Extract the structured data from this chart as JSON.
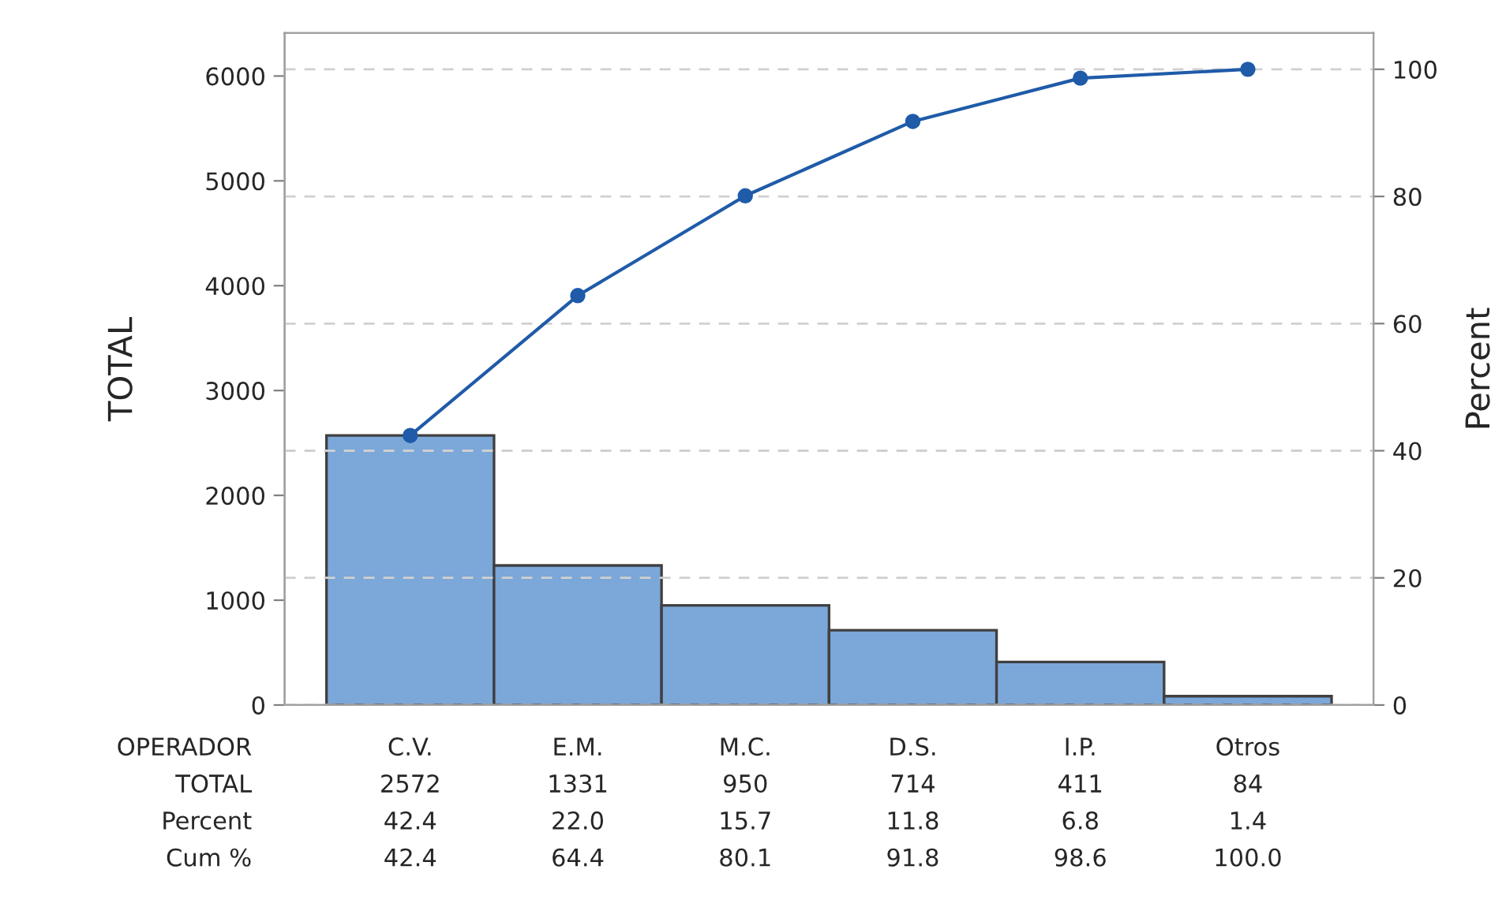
{
  "chart_data": {
    "type": "bar",
    "xlabel": "OPERADOR",
    "ylabel": "TOTAL",
    "y2label": "Percent",
    "categories": [
      "C.V.",
      "E.M.",
      "M.C.",
      "D.S.",
      "I.P.",
      "Otros"
    ],
    "series": [
      {
        "color": "#7ba7d9",
        "values": [
          2572,
          1331,
          950,
          714,
          411,
          84
        ]
      },
      {
        "type": "line",
        "axis": "y2",
        "color": "#1f5ba8",
        "values": [
          42.4,
          64.4,
          80.1,
          91.8,
          98.6,
          100.0
        ],
        "value_labels": [
          "42.4",
          "64.4",
          "80.1",
          "91.8",
          "98.6",
          "100.0"
        ]
      }
    ],
    "annotations": [
      "TOTAL",
      "Percent",
      "Cum %",
      "42.4",
      "22.0",
      "15.7",
      "11.8",
      "6.8",
      "1.4"
    ],
    "ylim": [
      0,
      6410
    ],
    "yticks": [
      0,
      1000,
      2000,
      3000,
      4000,
      5000,
      6000
    ],
    "y2lim": [
      0,
      105.7
    ],
    "y2ticks": [
      0,
      20,
      40,
      60,
      80,
      100
    ],
    "grid": "y2",
    "marker": "circle",
    "line_style": "solid",
    "data_labels": true
  }
}
